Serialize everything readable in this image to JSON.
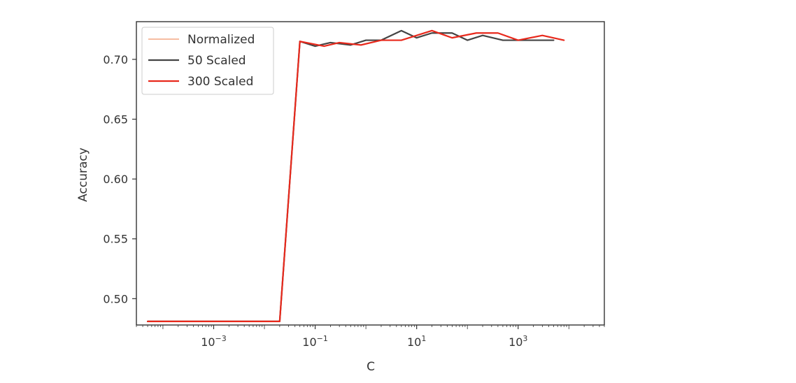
{
  "chart_data": {
    "type": "line",
    "xscale": "log",
    "xlabel": "C",
    "ylabel": "Accuracy",
    "xlim": [
      3e-05,
      50000
    ],
    "ylim": [
      0.478,
      0.7315
    ],
    "grid": false,
    "legend_position": "upper-left",
    "yticks": [
      0.5,
      0.55,
      0.6,
      0.65,
      0.7
    ],
    "ytick_labels": [
      "0.50",
      "0.55",
      "0.60",
      "0.65",
      "0.70"
    ],
    "xticks": [
      {
        "value": 0.001,
        "base": "10",
        "exp": "−3"
      },
      {
        "value": 0.1,
        "base": "10",
        "exp": "−1"
      },
      {
        "value": 10,
        "base": "10",
        "exp": "1"
      },
      {
        "value": 1000,
        "base": "10",
        "exp": "3"
      }
    ],
    "series": [
      {
        "name": "Normalized",
        "color": "#f4a582",
        "width": 1.5,
        "x": [
          5e-05,
          0.0001,
          0.0002,
          0.0005,
          0.001,
          0.002,
          0.005,
          0.01,
          0.02,
          0.05,
          0.1,
          0.2,
          0.5,
          1,
          2,
          5,
          10,
          20,
          50,
          100,
          200,
          500,
          1000,
          2000,
          5000
        ],
        "y": [
          0.481,
          0.481,
          0.481,
          0.481,
          0.481,
          0.481,
          0.481,
          0.481,
          0.481,
          0.715,
          0.711,
          0.714,
          0.712,
          0.716,
          0.716,
          0.724,
          0.718,
          0.722,
          0.722,
          0.716,
          0.72,
          0.716,
          0.716,
          0.716,
          0.716
        ]
      },
      {
        "name": "50 Scaled",
        "color": "#444444",
        "width": 2.2,
        "x": [
          5e-05,
          0.0001,
          0.0002,
          0.0005,
          0.001,
          0.002,
          0.005,
          0.01,
          0.02,
          0.05,
          0.1,
          0.2,
          0.5,
          1,
          2,
          5,
          10,
          20,
          50,
          100,
          200,
          500,
          1000,
          2000,
          5000
        ],
        "y": [
          0.481,
          0.481,
          0.481,
          0.481,
          0.481,
          0.481,
          0.481,
          0.481,
          0.481,
          0.715,
          0.711,
          0.714,
          0.712,
          0.716,
          0.716,
          0.724,
          0.718,
          0.722,
          0.722,
          0.716,
          0.72,
          0.716,
          0.716,
          0.716,
          0.716
        ]
      },
      {
        "name": "300 Scaled",
        "color": "#e8291c",
        "width": 2.2,
        "x": [
          5e-05,
          0.0002,
          0.0005,
          0.002,
          0.005,
          0.02,
          0.05,
          0.15,
          0.3,
          0.8,
          2,
          5,
          20,
          50,
          150,
          400,
          1000,
          3000,
          8000
        ],
        "y": [
          0.481,
          0.481,
          0.481,
          0.481,
          0.481,
          0.481,
          0.715,
          0.711,
          0.714,
          0.712,
          0.716,
          0.716,
          0.724,
          0.718,
          0.722,
          0.722,
          0.716,
          0.72,
          0.716
        ]
      }
    ]
  }
}
